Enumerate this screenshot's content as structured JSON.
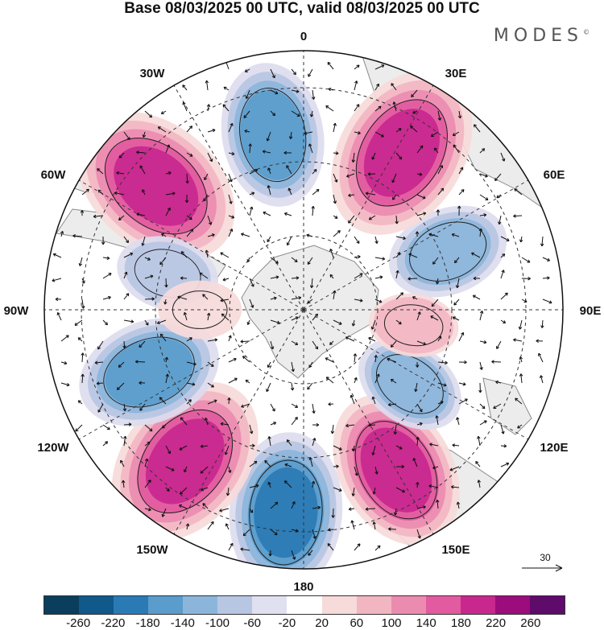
{
  "title": "Base 08/03/2025 00 UTC, valid 08/03/2025 00 UTC",
  "brand": "MODES",
  "brand_mark": "©",
  "longitude_labels": {
    "top": "0",
    "bottom": "180",
    "left": "90W",
    "right": "90E",
    "nw1": "30W",
    "nw2": "60W",
    "ne1": "30E",
    "ne2": "60E",
    "sw1": "120W",
    "sw2": "150W",
    "se1": "120E",
    "se2": "150E"
  },
  "reference_vector": "30",
  "colorbar": {
    "ticks": [
      "-260",
      "-220",
      "-180",
      "-140",
      "-100",
      "-60",
      "-20",
      "20",
      "60",
      "100",
      "140",
      "180",
      "220",
      "260"
    ],
    "colors": [
      "#0b3d5c",
      "#10598a",
      "#2a7ab5",
      "#5a9ccc",
      "#8cb5db",
      "#b7c6e3",
      "#e0e1f0",
      "#ffffff",
      "#f7dada",
      "#f2b6c3",
      "#ec8bb0",
      "#e25aa0",
      "#c8278e",
      "#9c0c7c",
      "#5e0b6b"
    ]
  },
  "anomalies": [
    {
      "type": "neg",
      "lon": -5,
      "lat": -35,
      "strength": 3
    },
    {
      "type": "pos",
      "lon": -38,
      "lat": -38,
      "strength": 3.5
    },
    {
      "type": "pos",
      "lon": 30,
      "lat": -40,
      "strength": 3
    },
    {
      "type": "neg",
      "lon": -68,
      "lat": -45,
      "strength": 2.5
    },
    {
      "type": "neg",
      "lon": 55,
      "lat": -55,
      "strength": 1.5
    },
    {
      "type": "neg",
      "lon": 112,
      "lat": -48,
      "strength": 1.8
    },
    {
      "type": "pos",
      "lon": -130,
      "lat": -38,
      "strength": 3.5
    },
    {
      "type": "neg",
      "lon": -170,
      "lat": -42,
      "strength": 2.5
    },
    {
      "type": "pos",
      "lon": 148,
      "lat": -40,
      "strength": 3.5
    },
    {
      "type": "neg",
      "lon": -105,
      "lat": -52,
      "strength": 1.2
    },
    {
      "type": "pos",
      "lon": 82,
      "lat": -60,
      "strength": 0.8
    },
    {
      "type": "pos",
      "lon": -90,
      "lat": -62,
      "strength": 0.6
    }
  ]
}
